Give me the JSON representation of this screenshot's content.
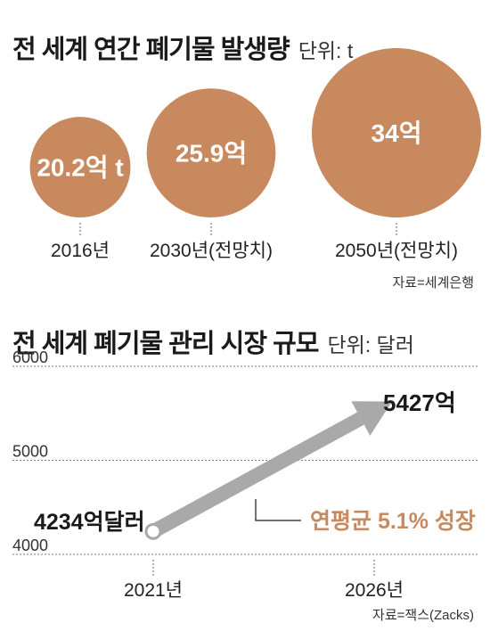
{
  "chart_data": [
    {
      "type": "bubble",
      "title": "전 세계 연간 폐기물 발생량",
      "unit": "단위: t",
      "categories": [
        "2016년",
        "2030년(전망치)",
        "2050년(전망치)"
      ],
      "values": [
        20.2,
        25.9,
        34
      ],
      "value_labels": [
        "20.2억 t",
        "25.9억",
        "34억"
      ],
      "source": "자료=세계은행",
      "color": "#c8895e"
    },
    {
      "type": "line",
      "title": "전 세계 폐기물 관리 시장 규모",
      "unit": "단위: 달러",
      "x": [
        "2021년",
        "2026년"
      ],
      "y": [
        4234,
        5427
      ],
      "ylim": [
        4000,
        6000
      ],
      "yticks": [
        "6000",
        "5000",
        "4000"
      ],
      "start_label": "4234억달러",
      "end_label": "5427억",
      "annotation": "연평균 5.1% 성장",
      "source": "자료=잭스(Zacks)",
      "color": "#a9a9a9",
      "accent": "#c8895e"
    }
  ]
}
